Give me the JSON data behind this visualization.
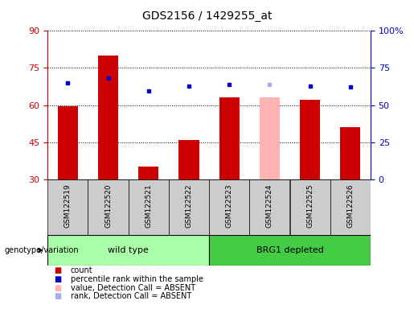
{
  "title": "GDS2156 / 1429255_at",
  "samples": [
    "GSM122519",
    "GSM122520",
    "GSM122521",
    "GSM122522",
    "GSM122523",
    "GSM122524",
    "GSM122525",
    "GSM122526"
  ],
  "count_values": [
    59.5,
    80.0,
    35.0,
    46.0,
    63.0,
    63.0,
    62.0,
    51.0
  ],
  "rank_values": [
    65.0,
    68.0,
    59.5,
    63.0,
    64.0,
    64.0,
    63.0,
    62.0
  ],
  "absent_flags": [
    false,
    false,
    false,
    false,
    false,
    true,
    false,
    false
  ],
  "ylim_left": [
    30,
    90
  ],
  "ylim_right": [
    0,
    100
  ],
  "yticks_left": [
    30,
    45,
    60,
    75,
    90
  ],
  "yticks_right": [
    0,
    25,
    50,
    75,
    100
  ],
  "ytick_labels_right": [
    "0",
    "25",
    "50",
    "75",
    "100%"
  ],
  "color_red_bar": "#cc0000",
  "color_pink_bar": "#ffb3b3",
  "color_blue_dot": "#0000cc",
  "color_lavender_dot": "#aaaaee",
  "color_wild_type_bg": "#aaffaa",
  "color_brg1_bg": "#44cc44",
  "color_sample_box": "#cccccc",
  "color_axis_left": "#cc0000",
  "color_axis_right": "#0000cc",
  "bar_width": 0.5,
  "genotype_label": "genotype/variation",
  "wild_type_label": "wild type",
  "brg1_label": "BRG1 depleted",
  "legend_items": [
    {
      "label": "count",
      "color": "#cc0000"
    },
    {
      "label": "percentile rank within the sample",
      "color": "#0000cc"
    },
    {
      "label": "value, Detection Call = ABSENT",
      "color": "#ffb3b3"
    },
    {
      "label": "rank, Detection Call = ABSENT",
      "color": "#aaaaee"
    }
  ]
}
